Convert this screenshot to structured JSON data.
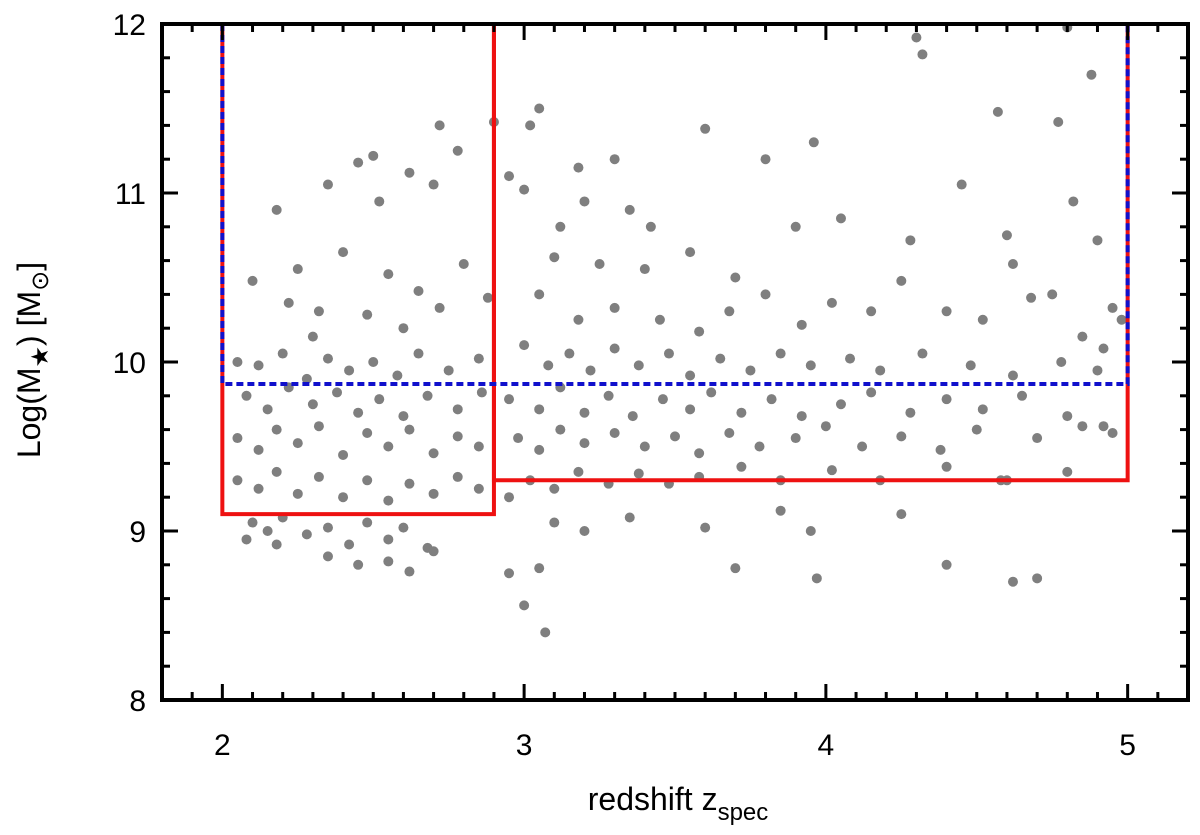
{
  "chart_data": {
    "type": "scatter",
    "title": "",
    "xlabel": "redshift",
    "xlabel_sub": "spec",
    "xlabel_var": "z",
    "ylabel_prefix": "Log(M",
    "ylabel_star": "★",
    "ylabel_suffix": ") [M",
    "ylabel_sun": "⊙",
    "ylabel_close": "]",
    "xlim": [
      1.8,
      5.2
    ],
    "ylim": [
      8,
      12
    ],
    "x_ticks": [
      2,
      3,
      4,
      5
    ],
    "x_tick_labels": [
      "2",
      "3",
      "4",
      "5"
    ],
    "y_ticks": [
      8,
      9,
      10,
      11,
      12
    ],
    "y_tick_labels": [
      "8",
      "9",
      "10",
      "11",
      "12"
    ],
    "grid": false,
    "legend": "none",
    "colors": {
      "points": "#7f7f7f",
      "selection_box": "#ee1111",
      "mass_limit": "#1010cc",
      "axes": "#000000"
    },
    "series": [
      {
        "marker": "circle",
        "color": "#7f7f7f",
        "points": [
          [
            2.72,
            11.4
          ],
          [
            2.9,
            11.42
          ],
          [
            3.05,
            11.5
          ],
          [
            3.02,
            11.4
          ],
          [
            3.18,
            11.15
          ],
          [
            3.3,
            11.2
          ],
          [
            3.6,
            11.38
          ],
          [
            3.8,
            11.2
          ],
          [
            3.96,
            11.3
          ],
          [
            4.3,
            11.92
          ],
          [
            4.32,
            11.82
          ],
          [
            4.8,
            11.98
          ],
          [
            4.88,
            11.7
          ],
          [
            4.57,
            11.48
          ],
          [
            4.77,
            11.42
          ],
          [
            2.18,
            10.9
          ],
          [
            2.35,
            11.05
          ],
          [
            2.45,
            11.18
          ],
          [
            2.5,
            11.22
          ],
          [
            2.62,
            11.12
          ],
          [
            2.78,
            11.25
          ],
          [
            2.52,
            10.95
          ],
          [
            2.7,
            11.05
          ],
          [
            2.95,
            11.1
          ],
          [
            3.0,
            11.02
          ],
          [
            3.12,
            10.8
          ],
          [
            3.2,
            10.95
          ],
          [
            3.35,
            10.9
          ],
          [
            3.42,
            10.8
          ],
          [
            3.1,
            10.62
          ],
          [
            3.25,
            10.58
          ],
          [
            3.4,
            10.55
          ],
          [
            3.55,
            10.65
          ],
          [
            3.7,
            10.5
          ],
          [
            3.9,
            10.8
          ],
          [
            4.05,
            10.85
          ],
          [
            4.28,
            10.72
          ],
          [
            4.45,
            11.05
          ],
          [
            4.6,
            10.75
          ],
          [
            4.9,
            10.72
          ],
          [
            4.82,
            10.95
          ],
          [
            4.75,
            10.4
          ],
          [
            4.62,
            10.58
          ],
          [
            4.95,
            10.32
          ],
          [
            4.98,
            10.25
          ],
          [
            2.22,
            10.35
          ],
          [
            2.3,
            10.15
          ],
          [
            2.25,
            10.55
          ],
          [
            2.1,
            10.48
          ],
          [
            2.4,
            10.65
          ],
          [
            2.55,
            10.52
          ],
          [
            2.65,
            10.42
          ],
          [
            2.8,
            10.58
          ],
          [
            2.88,
            10.38
          ],
          [
            2.32,
            10.3
          ],
          [
            2.48,
            10.28
          ],
          [
            2.6,
            10.2
          ],
          [
            2.72,
            10.32
          ],
          [
            3.05,
            10.4
          ],
          [
            3.18,
            10.25
          ],
          [
            3.3,
            10.32
          ],
          [
            3.45,
            10.25
          ],
          [
            3.58,
            10.18
          ],
          [
            3.68,
            10.3
          ],
          [
            3.8,
            10.4
          ],
          [
            3.92,
            10.22
          ],
          [
            4.02,
            10.35
          ],
          [
            4.15,
            10.3
          ],
          [
            4.25,
            10.48
          ],
          [
            4.4,
            10.3
          ],
          [
            4.52,
            10.25
          ],
          [
            4.68,
            10.38
          ],
          [
            4.85,
            10.15
          ],
          [
            4.92,
            10.08
          ],
          [
            2.05,
            10.0
          ],
          [
            2.12,
            9.98
          ],
          [
            2.2,
            10.05
          ],
          [
            2.28,
            9.9
          ],
          [
            2.35,
            10.02
          ],
          [
            2.42,
            9.95
          ],
          [
            2.5,
            10.0
          ],
          [
            2.58,
            9.92
          ],
          [
            2.65,
            10.05
          ],
          [
            2.75,
            9.95
          ],
          [
            2.85,
            10.02
          ],
          [
            3.0,
            10.1
          ],
          [
            3.08,
            9.98
          ],
          [
            3.15,
            10.05
          ],
          [
            3.22,
            9.95
          ],
          [
            3.3,
            10.08
          ],
          [
            3.38,
            9.98
          ],
          [
            3.48,
            10.05
          ],
          [
            3.55,
            9.92
          ],
          [
            3.65,
            10.02
          ],
          [
            3.75,
            9.95
          ],
          [
            3.85,
            10.05
          ],
          [
            3.95,
            9.98
          ],
          [
            4.08,
            10.02
          ],
          [
            4.18,
            9.95
          ],
          [
            4.32,
            10.05
          ],
          [
            4.48,
            9.98
          ],
          [
            4.62,
            9.92
          ],
          [
            4.78,
            10.0
          ],
          [
            4.9,
            9.95
          ],
          [
            2.08,
            9.8
          ],
          [
            2.15,
            9.72
          ],
          [
            2.22,
            9.85
          ],
          [
            2.3,
            9.75
          ],
          [
            2.38,
            9.82
          ],
          [
            2.45,
            9.7
          ],
          [
            2.52,
            9.78
          ],
          [
            2.6,
            9.68
          ],
          [
            2.68,
            9.8
          ],
          [
            2.78,
            9.72
          ],
          [
            2.86,
            9.82
          ],
          [
            2.95,
            9.78
          ],
          [
            3.05,
            9.72
          ],
          [
            3.12,
            9.85
          ],
          [
            3.2,
            9.7
          ],
          [
            3.28,
            9.8
          ],
          [
            3.36,
            9.68
          ],
          [
            3.46,
            9.78
          ],
          [
            3.55,
            9.72
          ],
          [
            3.62,
            9.82
          ],
          [
            3.72,
            9.7
          ],
          [
            3.82,
            9.78
          ],
          [
            3.92,
            9.68
          ],
          [
            4.05,
            9.75
          ],
          [
            4.15,
            9.82
          ],
          [
            4.28,
            9.7
          ],
          [
            4.4,
            9.78
          ],
          [
            4.52,
            9.72
          ],
          [
            4.65,
            9.8
          ],
          [
            4.8,
            9.68
          ],
          [
            4.92,
            9.62
          ],
          [
            2.05,
            9.55
          ],
          [
            2.12,
            9.48
          ],
          [
            2.18,
            9.6
          ],
          [
            2.25,
            9.52
          ],
          [
            2.32,
            9.62
          ],
          [
            2.4,
            9.45
          ],
          [
            2.48,
            9.58
          ],
          [
            2.55,
            9.5
          ],
          [
            2.62,
            9.6
          ],
          [
            2.7,
            9.46
          ],
          [
            2.78,
            9.56
          ],
          [
            2.85,
            9.5
          ],
          [
            2.98,
            9.55
          ],
          [
            3.05,
            9.48
          ],
          [
            3.12,
            9.6
          ],
          [
            3.2,
            9.52
          ],
          [
            3.3,
            9.58
          ],
          [
            3.4,
            9.5
          ],
          [
            3.5,
            9.56
          ],
          [
            3.58,
            9.46
          ],
          [
            3.68,
            9.58
          ],
          [
            3.78,
            9.5
          ],
          [
            3.9,
            9.55
          ],
          [
            4.0,
            9.62
          ],
          [
            4.12,
            9.5
          ],
          [
            4.25,
            9.56
          ],
          [
            4.38,
            9.48
          ],
          [
            4.5,
            9.6
          ],
          [
            4.7,
            9.55
          ],
          [
            4.85,
            9.62
          ],
          [
            4.95,
            9.58
          ],
          [
            2.05,
            9.3
          ],
          [
            2.12,
            9.25
          ],
          [
            2.18,
            9.35
          ],
          [
            2.25,
            9.22
          ],
          [
            2.32,
            9.32
          ],
          [
            2.4,
            9.2
          ],
          [
            2.48,
            9.3
          ],
          [
            2.55,
            9.18
          ],
          [
            2.62,
            9.28
          ],
          [
            2.7,
            9.22
          ],
          [
            2.78,
            9.32
          ],
          [
            2.85,
            9.25
          ],
          [
            2.95,
            9.2
          ],
          [
            3.02,
            9.3
          ],
          [
            3.1,
            9.25
          ],
          [
            3.18,
            9.35
          ],
          [
            3.28,
            9.28
          ],
          [
            3.38,
            9.34
          ],
          [
            3.48,
            9.28
          ],
          [
            3.58,
            9.32
          ],
          [
            3.72,
            9.38
          ],
          [
            3.85,
            9.3
          ],
          [
            4.02,
            9.36
          ],
          [
            4.18,
            9.3
          ],
          [
            4.4,
            9.38
          ],
          [
            4.58,
            9.3
          ],
          [
            4.8,
            9.35
          ],
          [
            2.1,
            9.05
          ],
          [
            2.15,
            9.0
          ],
          [
            2.2,
            9.08
          ],
          [
            2.28,
            8.98
          ],
          [
            2.35,
            9.02
          ],
          [
            2.42,
            8.92
          ],
          [
            2.48,
            9.05
          ],
          [
            2.55,
            8.95
          ],
          [
            2.6,
            9.02
          ],
          [
            2.68,
            8.9
          ],
          [
            2.08,
            8.95
          ],
          [
            2.18,
            8.92
          ],
          [
            2.35,
            8.85
          ],
          [
            2.45,
            8.8
          ],
          [
            2.55,
            8.82
          ],
          [
            2.62,
            8.76
          ],
          [
            2.7,
            8.88
          ],
          [
            2.95,
            8.75
          ],
          [
            3.0,
            8.56
          ],
          [
            3.05,
            8.78
          ],
          [
            3.07,
            8.4
          ],
          [
            3.1,
            9.05
          ],
          [
            3.2,
            9.0
          ],
          [
            3.35,
            9.08
          ],
          [
            3.6,
            9.02
          ],
          [
            3.7,
            8.78
          ],
          [
            3.85,
            9.12
          ],
          [
            3.95,
            9.0
          ],
          [
            3.97,
            8.72
          ],
          [
            4.25,
            9.1
          ],
          [
            4.4,
            8.8
          ],
          [
            4.62,
            8.7
          ],
          [
            4.7,
            8.72
          ],
          [
            4.6,
            9.3
          ]
        ]
      }
    ],
    "selection_boxes": [
      {
        "x": [
          2.0,
          2.9
        ],
        "y": [
          9.1,
          12
        ]
      },
      {
        "x": [
          2.9,
          5.0
        ],
        "y": [
          9.3,
          12
        ]
      }
    ],
    "mass_limit": {
      "x": [
        2.0,
        5.0
      ],
      "y_line": 9.87,
      "y_top": 12
    }
  }
}
